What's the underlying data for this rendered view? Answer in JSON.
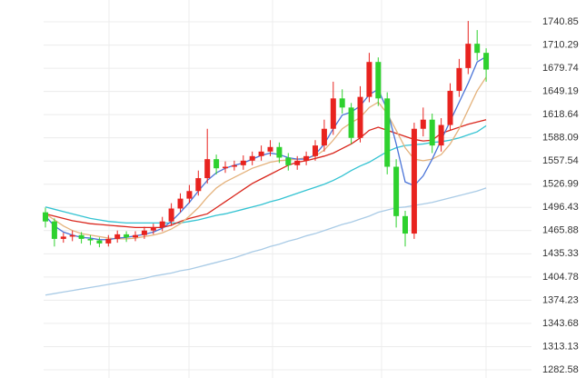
{
  "chart_data": {
    "type": "candlestick",
    "open": [
      1490,
      1478,
      1455,
      1458,
      1460,
      1455,
      1453,
      1449,
      1455,
      1461,
      1457,
      1460,
      1466,
      1470,
      1478,
      1495,
      1508,
      1518,
      1535,
      1560,
      1548,
      1550,
      1552,
      1558,
      1564,
      1570,
      1576,
      1562,
      1552,
      1558,
      1564,
      1578,
      1600,
      1640,
      1628,
      1588,
      1642,
      1688,
      1640,
      1550,
      1485,
      1462,
      1600,
      1612,
      1578,
      1605,
      1650,
      1680,
      1712,
      1700
    ],
    "high": [
      1496,
      1482,
      1463,
      1466,
      1464,
      1460,
      1457,
      1460,
      1466,
      1465,
      1465,
      1471,
      1475,
      1484,
      1502,
      1515,
      1526,
      1545,
      1600,
      1566,
      1557,
      1558,
      1565,
      1570,
      1578,
      1585,
      1582,
      1568,
      1564,
      1570,
      1585,
      1612,
      1662,
      1652,
      1634,
      1656,
      1700,
      1694,
      1648,
      1560,
      1492,
      1608,
      1628,
      1620,
      1614,
      1660,
      1692,
      1742,
      1730,
      1706
    ],
    "low": [
      1470,
      1445,
      1450,
      1452,
      1449,
      1447,
      1444,
      1445,
      1450,
      1451,
      1452,
      1455,
      1461,
      1465,
      1472,
      1490,
      1502,
      1512,
      1528,
      1540,
      1542,
      1545,
      1546,
      1552,
      1558,
      1564,
      1555,
      1545,
      1546,
      1552,
      1558,
      1570,
      1592,
      1620,
      1580,
      1582,
      1635,
      1630,
      1540,
      1470,
      1445,
      1455,
      1590,
      1568,
      1570,
      1598,
      1642,
      1672,
      1690,
      1662
    ],
    "close": [
      1478,
      1455,
      1458,
      1460,
      1455,
      1453,
      1449,
      1455,
      1461,
      1457,
      1460,
      1466,
      1470,
      1478,
      1495,
      1508,
      1518,
      1535,
      1560,
      1548,
      1550,
      1552,
      1558,
      1564,
      1570,
      1576,
      1562,
      1552,
      1558,
      1564,
      1578,
      1600,
      1640,
      1628,
      1588,
      1642,
      1688,
      1640,
      1550,
      1485,
      1462,
      1600,
      1612,
      1578,
      1605,
      1650,
      1680,
      1712,
      1700,
      1678
    ],
    "up_color": "#e8231f",
    "down_color": "#2ed12e",
    "series": [
      {
        "color": "#a9cbe6",
        "values": [
          1381,
          1383,
          1385,
          1387,
          1389,
          1391,
          1393,
          1395,
          1397,
          1399,
          1401,
          1403,
          1406,
          1408,
          1410,
          1413,
          1415,
          1418,
          1421,
          1424,
          1427,
          1430,
          1434,
          1438,
          1441,
          1445,
          1448,
          1452,
          1455,
          1459,
          1462,
          1466,
          1470,
          1474,
          1477,
          1481,
          1485,
          1490,
          1493,
          1496,
          1497,
          1499,
          1501,
          1503,
          1506,
          1509,
          1512,
          1515,
          1518,
          1522
        ]
      },
      {
        "color": "#33c3d2",
        "values": [
          1497,
          1494,
          1491,
          1488,
          1485,
          1482,
          1480,
          1478,
          1477,
          1476,
          1476,
          1476,
          1476,
          1476,
          1476,
          1476,
          1478,
          1480,
          1483,
          1486,
          1488,
          1491,
          1494,
          1497,
          1500,
          1504,
          1507,
          1511,
          1515,
          1519,
          1523,
          1527,
          1532,
          1538,
          1545,
          1551,
          1556,
          1563,
          1570,
          1575,
          1578,
          1579,
          1580,
          1582,
          1583,
          1585,
          1588,
          1592,
          1596,
          1604
        ]
      },
      {
        "color": "#d9261c",
        "values": [
          1488,
          1485,
          1482,
          1479,
          1477,
          1475,
          1474,
          1473,
          1472,
          1471,
          1470,
          1470,
          1470,
          1470,
          1473,
          1478,
          1482,
          1485,
          1488,
          1496,
          1504,
          1512,
          1520,
          1528,
          1534,
          1540,
          1546,
          1552,
          1556,
          1558,
          1561,
          1564,
          1568,
          1574,
          1580,
          1588,
          1598,
          1602,
          1598,
          1594,
          1590,
          1586,
          1584,
          1585,
          1594,
          1598,
          1602,
          1606,
          1609,
          1612
        ]
      },
      {
        "color": "#e4b27c",
        "values": [
          1488,
          1480,
          1472,
          1466,
          1462,
          1460,
          1458,
          1456,
          1455,
          1455,
          1456,
          1458,
          1460,
          1463,
          1468,
          1475,
          1485,
          1496,
          1510,
          1522,
          1530,
          1536,
          1542,
          1548,
          1552,
          1556,
          1558,
          1559,
          1560,
          1562,
          1564,
          1572,
          1585,
          1600,
          1608,
          1615,
          1628,
          1635,
          1620,
          1598,
          1575,
          1560,
          1558,
          1560,
          1566,
          1580,
          1600,
          1625,
          1650,
          1668
        ]
      },
      {
        "color": "#4a74d8",
        "values": [
          1485,
          1472,
          1464,
          1460,
          1457,
          1456,
          1454,
          1454,
          1456,
          1457,
          1459,
          1461,
          1464,
          1469,
          1478,
          1490,
          1503,
          1518,
          1532,
          1542,
          1548,
          1552,
          1555,
          1560,
          1565,
          1568,
          1566,
          1562,
          1560,
          1560,
          1566,
          1580,
          1600,
          1618,
          1622,
          1630,
          1645,
          1652,
          1625,
          1580,
          1530,
          1525,
          1538,
          1560,
          1585,
          1610,
          1635,
          1660,
          1688,
          1695
        ]
      }
    ],
    "ylim": [
      1271.8,
      1769.6
    ],
    "yticks": [
      1740.85,
      1710.29,
      1679.74,
      1649.19,
      1618.64,
      1588.09,
      1557.54,
      1526.99,
      1496.43,
      1465.88,
      1435.33,
      1404.78,
      1374.23,
      1343.68,
      1313.13,
      1282.58
    ],
    "grid": true
  }
}
